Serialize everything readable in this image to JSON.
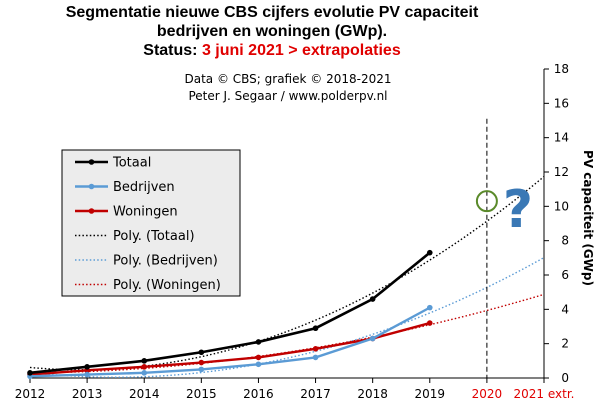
{
  "title": {
    "line1": "Segmentatie nieuwe CBS cijfers evolutie PV capaciteit",
    "line2": "bedrijven en woningen (GWp).",
    "status_label": "Status: ",
    "status_value": "3 juni 2021 > extrapolaties"
  },
  "credits": {
    "line1": "Data © CBS; grafiek © 2018-2021",
    "line2": "Peter J. Segaar / www.polderpv.nl"
  },
  "annotation": {
    "question_mark": "?"
  },
  "colors": {
    "totaal": "#000000",
    "bedrijven": "#5b9bd5",
    "woningen": "#c00000",
    "highlight_red": "#e00000",
    "circle": "#5a8a2a",
    "question": "#3a78b5"
  },
  "chart_data": {
    "type": "line",
    "ylabel": "PV capaciteit (GWp)",
    "ylim": [
      0,
      18
    ],
    "yticks": [
      "0",
      "2",
      "4",
      "6",
      "8",
      "10",
      "12",
      "14",
      "16",
      "18"
    ],
    "xlim": [
      2012,
      2021
    ],
    "x_ticks": [
      {
        "value": 2012,
        "label": "2012",
        "highlight": false
      },
      {
        "value": 2013,
        "label": "2013",
        "highlight": false
      },
      {
        "value": 2014,
        "label": "2014",
        "highlight": false
      },
      {
        "value": 2015,
        "label": "2015",
        "highlight": false
      },
      {
        "value": 2016,
        "label": "2016",
        "highlight": false
      },
      {
        "value": 2017,
        "label": "2017",
        "highlight": false
      },
      {
        "value": 2018,
        "label": "2018",
        "highlight": false
      },
      {
        "value": 2019,
        "label": "2019",
        "highlight": false
      },
      {
        "value": 2020,
        "label": "2020",
        "highlight": true
      },
      {
        "value": 2021,
        "label": "2021 extr.",
        "highlight": true
      }
    ],
    "x": [
      2012,
      2013,
      2014,
      2015,
      2016,
      2017,
      2018,
      2019
    ],
    "series": [
      {
        "name": "Totaal",
        "key": "totaal",
        "values": [
          0.3,
          0.65,
          1.0,
          1.5,
          2.1,
          2.9,
          4.6,
          7.3
        ]
      },
      {
        "name": "Bedrijven",
        "key": "bedrijven",
        "values": [
          0.1,
          0.2,
          0.3,
          0.5,
          0.8,
          1.2,
          2.3,
          4.1
        ]
      },
      {
        "name": "Woningen",
        "key": "woningen",
        "values": [
          0.2,
          0.45,
          0.65,
          0.9,
          1.2,
          1.7,
          2.3,
          3.2
        ]
      }
    ],
    "trendlines": [
      {
        "name": "Poly. (Totaal)",
        "key": "totaal",
        "degree": 2
      },
      {
        "name": "Poly. (Bedrijven)",
        "key": "bedrijven",
        "degree": 2
      },
      {
        "name": "Poly. (Woningen)",
        "key": "woningen",
        "degree": 2
      }
    ],
    "marker_line_x": 2020,
    "highlight_point": {
      "x": 2020,
      "y": 10.3
    },
    "legend": {
      "position": "left",
      "entries": [
        "Totaal",
        "Bedrijven",
        "Woningen",
        "Poly. (Totaal)",
        "Poly. (Bedrijven)",
        "Poly. (Woningen)"
      ]
    }
  }
}
